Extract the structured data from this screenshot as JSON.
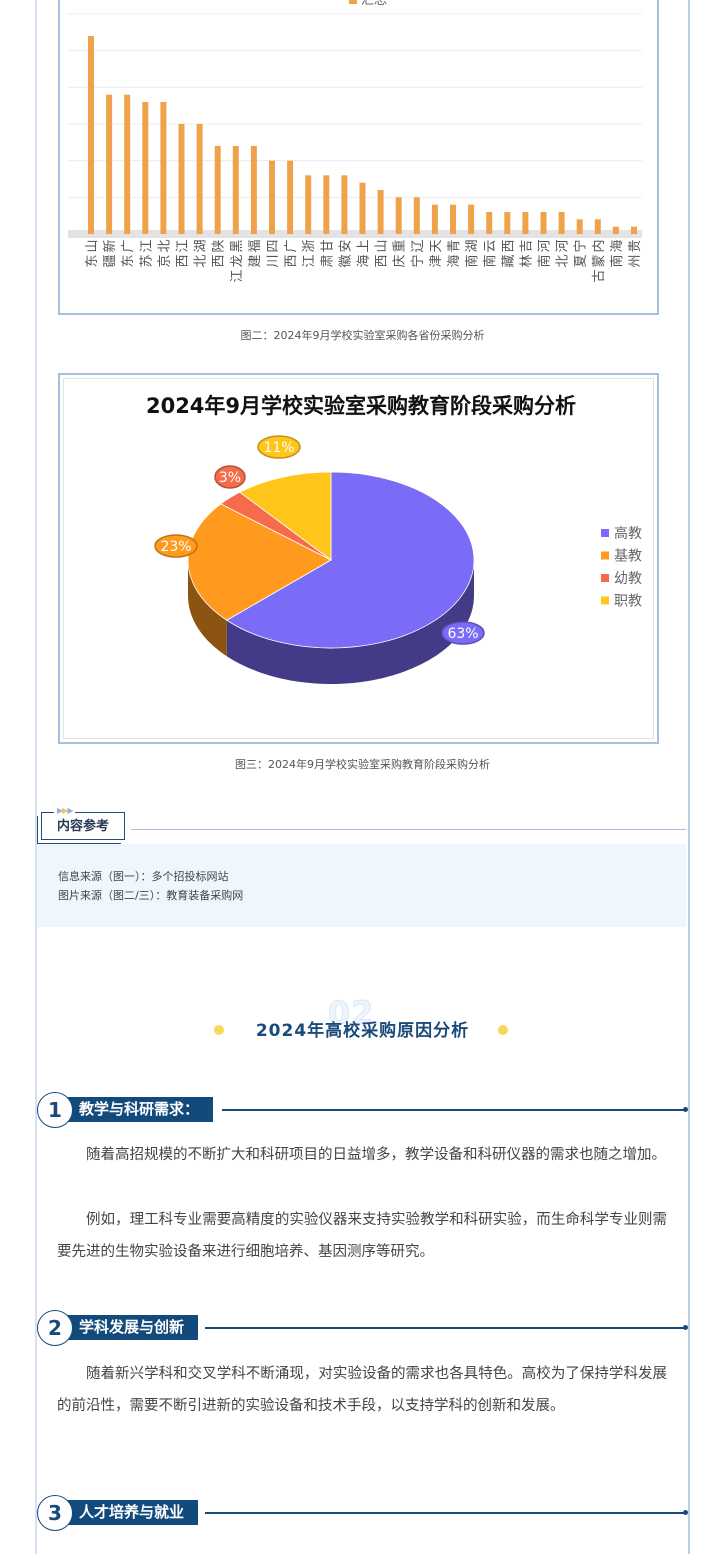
{
  "chart_data": [
    {
      "type": "bar",
      "legend": [
        "汇总"
      ],
      "legend_placement": "top",
      "grid": true,
      "ylim": [
        0,
        30
      ],
      "color": "#f0a24b",
      "categories": [
        "山东",
        "新疆",
        "广东",
        "江苏",
        "北京",
        "江西",
        "湖北",
        "陕西",
        "黑龙江",
        "福建",
        "四川",
        "广西",
        "浙江",
        "甘肃",
        "安徽",
        "上海",
        "山西",
        "重庆",
        "辽宁",
        "天津",
        "青海",
        "湖南",
        "云南",
        "西藏",
        "吉林",
        "河南",
        "河北",
        "宁夏",
        "内蒙古",
        "海南",
        "贵州"
      ],
      "values": [
        27,
        19,
        19,
        18,
        18,
        15,
        15,
        12,
        12,
        12,
        10,
        10,
        8,
        8,
        8,
        7,
        6,
        5,
        5,
        4,
        4,
        4,
        3,
        3,
        3,
        3,
        3,
        2,
        2,
        1,
        1
      ]
    },
    {
      "type": "pie",
      "title": "2024年9月学校实验室采购教育阶段采购分析",
      "legend_placement": "right",
      "slices": [
        {
          "label": "高教",
          "value": 63,
          "display": "63%",
          "color": "#7a6cf7"
        },
        {
          "label": "基教",
          "value": 23,
          "display": "23%",
          "color": "#ff9a1f"
        },
        {
          "label": "幼教",
          "value": 3,
          "display": "3%",
          "color": "#f56b4b"
        },
        {
          "label": "职教",
          "value": 11,
          "display": "11%",
          "color": "#ffc51a"
        }
      ]
    }
  ],
  "captions": {
    "fig2": "图二：2024年9月学校实验室采购各省份采购分析",
    "fig3": "图三：2024年9月学校实验室采购教育阶段采购分析"
  },
  "reference": {
    "tag": "内容参考",
    "lines": [
      "信息来源（图一）：多个招投标网站",
      "图片来源（图二/三）：教育装备采购网"
    ]
  },
  "section02": {
    "number": "02",
    "title": "2024年高校采购原因分析"
  },
  "sections": [
    {
      "num": "1",
      "title": "教学与科研需求：",
      "paragraphs": [
        "随着高招规模的不断扩大和科研项目的日益增多，教学设备和科研仪器的需求也随之增加。",
        "例如，理工科专业需要高精度的实验仪器来支持实验教学和科研实验，而生命科学专业则需要先进的生物实验设备来进行细胞培养、基因测序等研究。"
      ]
    },
    {
      "num": "2",
      "title": "学科发展与创新",
      "paragraphs": [
        "随着新兴学科和交叉学科不断涌现，对实验设备的需求也各具特色。高校为了保持学科发展的前沿性，需要不断引进新的实验设备和技术手段，以支持学科的创新和发展。"
      ]
    },
    {
      "num": "3",
      "title": "人才培养与就业",
      "paragraphs": []
    }
  ]
}
